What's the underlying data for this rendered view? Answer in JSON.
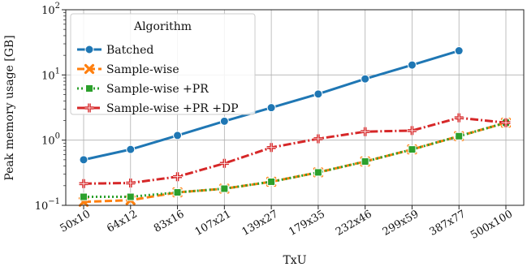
{
  "chart_data": {
    "type": "line",
    "title": "",
    "xlabel": "TxU",
    "ylabel": "Peak memory usage [GB]",
    "yscale": "log",
    "ylim": [
      0.1,
      100
    ],
    "yticks": [
      {
        "value": 0.1,
        "base": "10",
        "exp": "−1"
      },
      {
        "value": 1,
        "base": "10",
        "exp": "0"
      },
      {
        "value": 10,
        "base": "10",
        "exp": "1"
      },
      {
        "value": 100,
        "base": "10",
        "exp": "2"
      }
    ],
    "categories": [
      "50x10",
      "64x12",
      "83x16",
      "107x21",
      "139x27",
      "179x35",
      "232x46",
      "299x59",
      "387x77",
      "500x100"
    ],
    "grid": true,
    "legend": {
      "title": "Algorithm",
      "position": "top-left"
    },
    "series": [
      {
        "name": "Batched",
        "color": "#1f77b4",
        "marker": "circle",
        "line_style": "solid",
        "values": [
          0.5,
          0.72,
          1.18,
          1.95,
          3.15,
          5.1,
          8.7,
          14.2,
          23.5,
          null
        ]
      },
      {
        "name": "Sample-wise",
        "color": "#ff7f0e",
        "marker": "x",
        "line_style": "dashed",
        "values": [
          0.113,
          0.12,
          0.158,
          0.18,
          0.23,
          0.32,
          0.47,
          0.72,
          1.15,
          1.85
        ]
      },
      {
        "name": "Sample-wise +PR",
        "color": "#2ca02c",
        "marker": "square",
        "line_style": "dotted",
        "values": [
          0.135,
          0.135,
          0.158,
          0.18,
          0.23,
          0.32,
          0.47,
          0.72,
          1.15,
          1.85
        ]
      },
      {
        "name": "Sample-wise +PR +DP",
        "color": "#d62728",
        "marker": "plus",
        "line_style": "dashdot",
        "values": [
          0.215,
          0.22,
          0.275,
          0.44,
          0.77,
          1.05,
          1.35,
          1.4,
          2.2,
          1.85
        ]
      }
    ]
  }
}
